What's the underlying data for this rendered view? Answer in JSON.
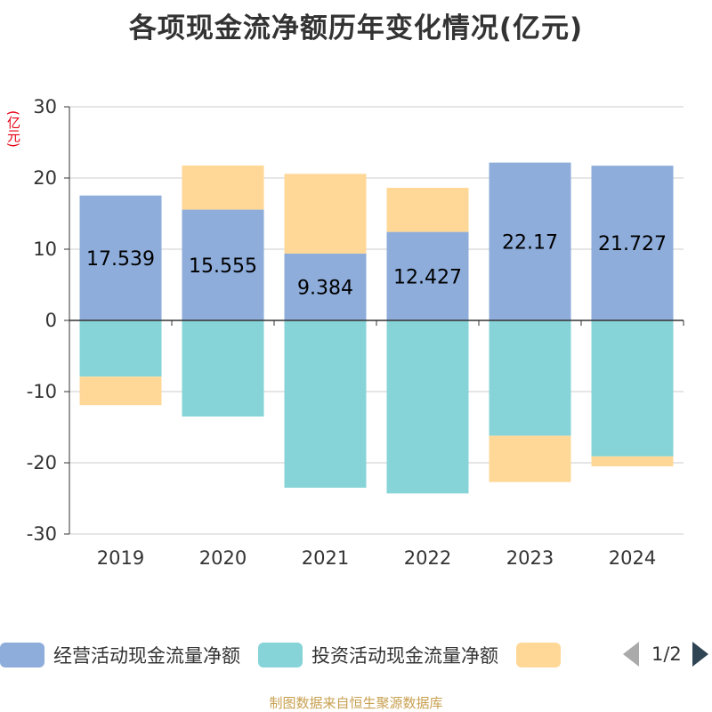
{
  "title": "各项现金流净额历年变化情况(亿元)",
  "unit_label": "(亿元)",
  "source": "制图数据来自恒生聚源数据库",
  "legend": {
    "items": [
      {
        "label": "经营活动现金流量净额",
        "color": "#8eaddb"
      },
      {
        "label": "投资活动现金流量净额",
        "color": "#86d4d8"
      },
      {
        "label": "",
        "color": "#ffd898"
      }
    ],
    "page_indicator": "1/2"
  },
  "chart_data": {
    "type": "bar",
    "stacked": true,
    "categories": [
      "2019",
      "2020",
      "2021",
      "2022",
      "2023",
      "2024"
    ],
    "ylim": [
      -30,
      30
    ],
    "yticks": [
      30,
      20,
      10,
      0,
      -10,
      -20,
      -30
    ],
    "grid": true,
    "series": [
      {
        "name": "经营活动现金流量净额",
        "color": "#8eaddb",
        "values": [
          17.539,
          15.555,
          9.384,
          12.427,
          22.17,
          21.727
        ],
        "labels": [
          "17.539",
          "15.555",
          "9.384",
          "12.427",
          "22.17",
          "21.727"
        ]
      },
      {
        "name": "投资活动现金流量净额",
        "color": "#86d4d8",
        "values": [
          -7.9,
          -13.5,
          -23.5,
          -24.3,
          -16.2,
          -19.1
        ]
      },
      {
        "color": "#ffd898",
        "values": [
          -4.0,
          6.2,
          11.2,
          6.2,
          -6.5,
          -1.4
        ]
      }
    ]
  }
}
